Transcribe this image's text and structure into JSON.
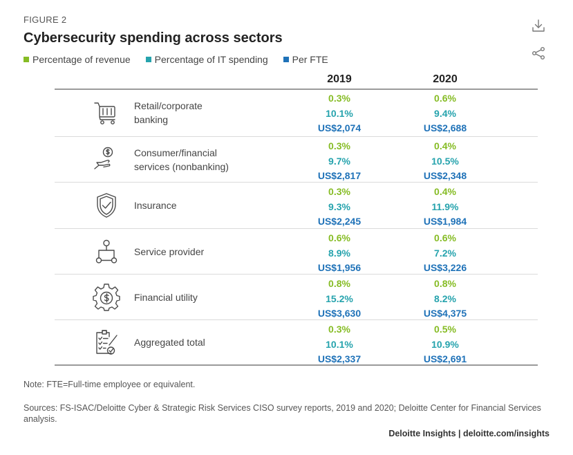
{
  "figure_label": "FIGURE 2",
  "title": "Cybersecurity spending across sectors",
  "legend": [
    {
      "label": "Percentage of revenue",
      "color": "#86bc25",
      "icon": "green-square"
    },
    {
      "label": "Percentage of IT spending",
      "color": "#26a3ad",
      "icon": "teal-square"
    },
    {
      "label": "Per FTE",
      "color": "#1f72b8",
      "icon": "blue-square"
    }
  ],
  "tools": {
    "download_icon": "download-icon",
    "share_icon": "share-icon"
  },
  "chart_data": {
    "type": "table",
    "title": "Cybersecurity spending across sectors",
    "columns": [
      "2019",
      "2020"
    ],
    "metrics": [
      "Percentage of revenue",
      "Percentage of IT spending",
      "Per FTE"
    ],
    "rows": [
      {
        "sector": "Retail/corporate banking",
        "label_lines": [
          "Retail/corporate",
          "banking"
        ],
        "icon": "shopping-cart-icon",
        "values": {
          "2019": [
            "0.3%",
            "10.1%",
            "US$2,074"
          ],
          "2020": [
            "0.6%",
            "9.4%",
            "US$2,688"
          ]
        }
      },
      {
        "sector": "Consumer/financial services (nonbanking)",
        "label_lines": [
          "Consumer/financial",
          "services (nonbanking)"
        ],
        "icon": "hand-coin-icon",
        "values": {
          "2019": [
            "0.3%",
            "9.7%",
            "US$2,817"
          ],
          "2020": [
            "0.4%",
            "10.5%",
            "US$2,348"
          ]
        }
      },
      {
        "sector": "Insurance",
        "label_lines": [
          "Insurance"
        ],
        "icon": "shield-check-icon",
        "values": {
          "2019": [
            "0.3%",
            "9.3%",
            "US$2,245"
          ],
          "2020": [
            "0.4%",
            "11.9%",
            "US$1,984"
          ]
        }
      },
      {
        "sector": "Service provider",
        "label_lines": [
          "Service provider"
        ],
        "icon": "network-hierarchy-icon",
        "values": {
          "2019": [
            "0.6%",
            "8.9%",
            "US$1,956"
          ],
          "2020": [
            "0.6%",
            "7.2%",
            "US$3,226"
          ]
        }
      },
      {
        "sector": "Financial utility",
        "label_lines": [
          "Financial utility"
        ],
        "icon": "gear-dollar-icon",
        "values": {
          "2019": [
            "0.8%",
            "15.2%",
            "US$3,630"
          ],
          "2020": [
            "0.8%",
            "8.2%",
            "US$4,375"
          ]
        }
      },
      {
        "sector": "Aggregated total",
        "label_lines": [
          "Aggregated total"
        ],
        "icon": "clipboard-check-icon",
        "values": {
          "2019": [
            "0.3%",
            "10.1%",
            "US$2,337"
          ],
          "2020": [
            "0.5%",
            "10.9%",
            "US$2,691"
          ]
        }
      }
    ]
  },
  "note": "Note: FTE=Full-time employee or equivalent.",
  "sources": "Sources: FS-ISAC/Deloitte Cyber & Strategic Risk Services CISO survey reports, 2019 and 2020; Deloitte Center for Financial Services analysis.",
  "credit": "Deloitte Insights | deloitte.com/insights"
}
